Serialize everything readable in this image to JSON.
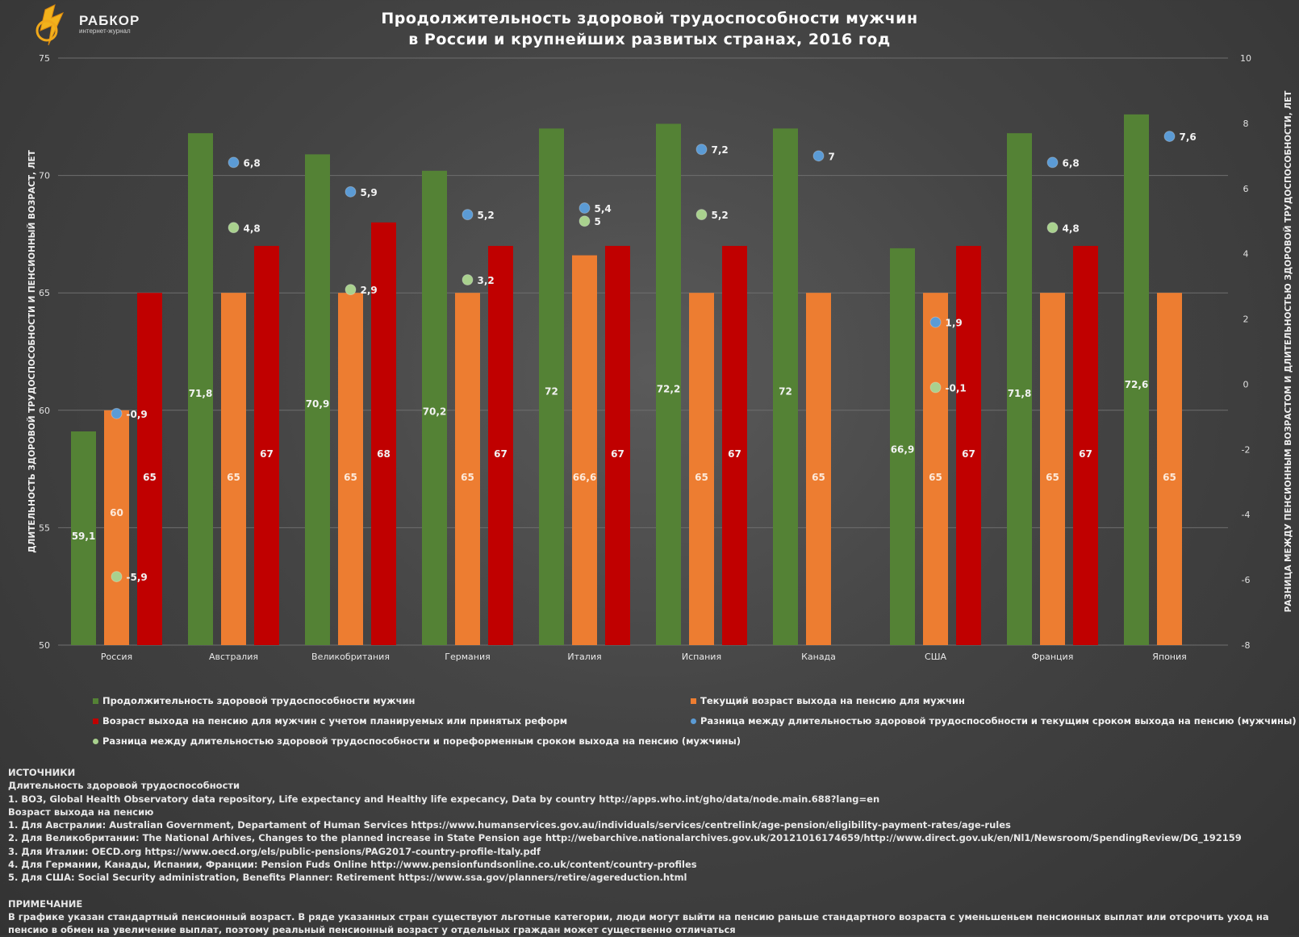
{
  "logo": {
    "name": "РАБКОР",
    "sub": "интернет-журнал"
  },
  "title_line1": "Продолжительность здоровой трудоспособности мужчин",
  "title_line2": "в России и крупнейших развитых странах, 2016 год",
  "colors": {
    "green": "#548235",
    "orange": "#ED7D31",
    "red": "#C00000",
    "blue_dot": "#5B9BD5",
    "green_dot": "#A9D18E"
  },
  "chart_data": {
    "type": "bar",
    "categories": [
      "Россия",
      "Австралия",
      "Великобритания",
      "Германия",
      "Италия",
      "Испания",
      "Канада",
      "США",
      "Франция",
      "Япония"
    ],
    "ylabel": "ДЛИТЕЛЬНОСТЬ ЗДОРОВОЙ ТРУДОСПОСОБНОСТИ И ПЕНСИОННЫЙ ВОЗРАСТ, ЛЕТ",
    "y2label": "РАЗНИЦА МЕЖДУ ПЕНСИОННЫМ ВОЗРАСТОМ И ДЛИТЕЛЬНОСТЬЮ ЗДОРОВОЙ ТРУДОСПОСОБНОСТИ, ЛЕТ",
    "ylim": [
      50,
      75
    ],
    "yticks": [
      50,
      55,
      60,
      65,
      70,
      75
    ],
    "y2lim": [
      -8,
      10
    ],
    "y2ticks": [
      -8,
      -6,
      -4,
      -2,
      0,
      2,
      4,
      6,
      8,
      10
    ],
    "grid": true,
    "legend_position": "bottom",
    "series": [
      {
        "name": "Продолжительность здоровой трудоспособности мужчин",
        "kind": "bar",
        "axis": "left",
        "color": "#548235",
        "values": [
          59.1,
          71.8,
          70.9,
          70.2,
          72,
          72.2,
          72,
          66.9,
          71.8,
          72.6
        ],
        "labels": [
          "59,1",
          "71,8",
          "70,9",
          "70,2",
          "72",
          "72,2",
          "72",
          "66,9",
          "71,8",
          "72,6"
        ]
      },
      {
        "name": "Текущий возраст выхода на пенсию для мужчин",
        "kind": "bar",
        "axis": "left",
        "color": "#ED7D31",
        "values": [
          60,
          65,
          65,
          65,
          66.6,
          65,
          65,
          65,
          65,
          65
        ],
        "labels": [
          "60",
          "65",
          "65",
          "65",
          "66,6",
          "65",
          "65",
          "65",
          "65",
          "65"
        ]
      },
      {
        "name": "Возраст выхода на пенсию для мужчин с учетом планируемых или принятых реформ",
        "kind": "bar",
        "axis": "left",
        "color": "#C00000",
        "values": [
          65,
          67,
          68,
          67,
          67,
          67,
          null,
          67,
          67,
          null
        ],
        "labels": [
          "65",
          "67",
          "68",
          "67",
          "67",
          "67",
          "",
          "67",
          "67",
          ""
        ]
      },
      {
        "name": "Разница между длительностью здоровой трудоспособности и текущим сроком выхода на пенсию (мужчины)",
        "kind": "scatter",
        "axis": "right",
        "color": "#5B9BD5",
        "values": [
          -0.9,
          6.8,
          5.9,
          5.2,
          5.4,
          7.2,
          7,
          1.9,
          6.8,
          7.6
        ],
        "labels": [
          "-0,9",
          "6,8",
          "5,9",
          "5,2",
          "5,4",
          "7,2",
          "7",
          "1,9",
          "6,8",
          "7,6"
        ]
      },
      {
        "name": "Разница между длительностью здоровой трудоспособности и пореформенным сроком выхода на пенсию (мужчины)",
        "kind": "scatter",
        "axis": "right",
        "color": "#A9D18E",
        "values": [
          -5.9,
          4.8,
          2.9,
          3.2,
          5,
          5.2,
          null,
          -0.1,
          4.8,
          null
        ],
        "labels": [
          "-5,9",
          "4,8",
          "2,9",
          "3,2",
          "5",
          "5,2",
          "",
          "-0,1",
          "4,8",
          ""
        ]
      }
    ]
  },
  "notes": {
    "sources_heading": "ИСТОЧНИКИ",
    "health_heading": "Длительность здоровой трудоспособности",
    "who": "1. ВОЗ, Global Health Observatory data repository, Life expectancy and Healthy life expecancy, Data by country http://apps.who.int/gho/data/node.main.688?lang=en",
    "pension_heading": "Возраст выхода на пенсию",
    "p1": "1. Для Австралии:  Australian Government, Departament of Human Services https://www.humanservices.gov.au/individuals/services/centrelink/age-pension/eligibility-payment-rates/age-rules",
    "p2": "2. Для Великобритании:  The National Arhives, Changes to the planned increase in State Pension age http://webarchive.nationalarchives.gov.uk/20121016174659/http://www.direct.gov.uk/en/Nl1/Newsroom/SpendingReview/DG_192159",
    "p3": "3. Для Италии: OECD.org https://www.oecd.org/els/public-pensions/PAG2017-country-profile-Italy.pdf",
    "p4": "4. Для Германии, Канады, Испании, Франции: Pension Fuds Online http://www.pensionfundsonline.co.uk/content/country-profiles",
    "p5": "5. Для США: Social Security administration, Benefits Planner: Retirement https://www.ssa.gov/planners/retire/agereduction.html",
    "note_heading": "ПРИМЕЧАНИЕ",
    "note_text": "В графике указан стандартный пенсионный возраст. В ряде указанных стран существуют льготные категории, люди могут выйти на пенсию раньше стандартного возраста с уменьшеньем пенсионных выплат или отсрочить уход на пенсию в обмен на увеличение выплат, поэтому реальный пенсионный возраст у отдельных граждан может существенно отличаться"
  }
}
